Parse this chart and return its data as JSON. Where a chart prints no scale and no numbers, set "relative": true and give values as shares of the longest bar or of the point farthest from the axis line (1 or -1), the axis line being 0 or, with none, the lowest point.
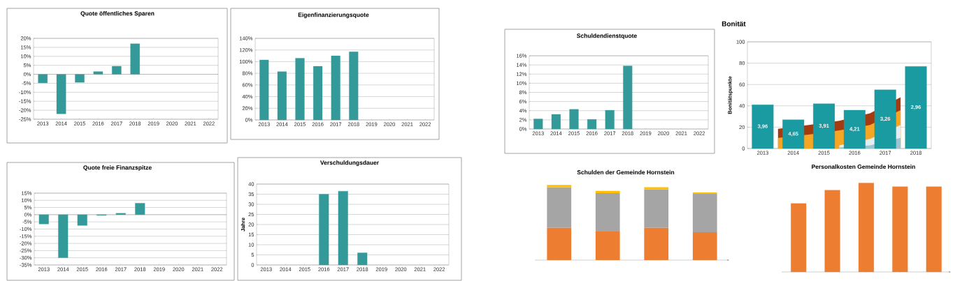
{
  "chart_data": [
    {
      "type": "bar",
      "title": "Quote öffentliches Sparen",
      "categories": [
        "2013",
        "2014",
        "2015",
        "2016",
        "2017",
        "2018",
        "2019",
        "2020",
        "2021",
        "2022"
      ],
      "values": [
        -4.8,
        -22,
        -4.5,
        1.5,
        4.5,
        17,
        null,
        null,
        null,
        null
      ],
      "color": "#339999",
      "ylim": [
        -25,
        20
      ],
      "yticks": [
        {
          "value": -25,
          "label": "-25%"
        },
        {
          "value": -20,
          "label": "-20%"
        },
        {
          "value": -15,
          "label": "-15%"
        },
        {
          "value": -10,
          "label": "-10%"
        },
        {
          "value": -5,
          "label": "-5%"
        },
        {
          "value": 0,
          "label": "0%"
        },
        {
          "value": 5,
          "label": "5%"
        },
        {
          "value": 10,
          "label": "10%"
        },
        {
          "value": 15,
          "label": "15%"
        },
        {
          "value": 20,
          "label": "20%"
        }
      ],
      "grid": "y"
    },
    {
      "type": "bar",
      "title": "Eigenfinanzierungsquote",
      "categories": [
        "2013",
        "2014",
        "2015",
        "2016",
        "2017",
        "2018",
        "2019",
        "2020",
        "2021",
        "2022"
      ],
      "values": [
        103,
        83,
        106,
        92,
        110,
        117,
        null,
        null,
        null,
        null
      ],
      "color": "#339999",
      "ylim": [
        0,
        140
      ],
      "yticks": [
        {
          "value": 0,
          "label": "0%"
        },
        {
          "value": 20,
          "label": "20%"
        },
        {
          "value": 40,
          "label": "40%"
        },
        {
          "value": 60,
          "label": "60%"
        },
        {
          "value": 80,
          "label": "80%"
        },
        {
          "value": 100,
          "label": "100%"
        },
        {
          "value": 120,
          "label": "120%"
        },
        {
          "value": 140,
          "label": "140%"
        }
      ],
      "grid": "y"
    },
    {
      "type": "bar",
      "title": "Quote freie Finanzspitze",
      "categories": [
        "2013",
        "2014",
        "2015",
        "2016",
        "2017",
        "2018",
        "2019",
        "2020",
        "2021",
        "2022"
      ],
      "values": [
        -6.5,
        -30,
        -7.5,
        -0.5,
        1,
        8,
        null,
        null,
        null,
        null
      ],
      "color": "#339999",
      "ylim": [
        -35,
        15
      ],
      "yticks": [
        {
          "value": -35,
          "label": "-35%"
        },
        {
          "value": -30,
          "label": "-30%"
        },
        {
          "value": -25,
          "label": "-25%"
        },
        {
          "value": -20,
          "label": "-20%"
        },
        {
          "value": -15,
          "label": "-15%"
        },
        {
          "value": -10,
          "label": "-10%"
        },
        {
          "value": -5,
          "label": "-5%"
        },
        {
          "value": 0,
          "label": "0%"
        },
        {
          "value": 5,
          "label": "5%"
        },
        {
          "value": 10,
          "label": "10%"
        },
        {
          "value": 15,
          "label": "15%"
        }
      ],
      "grid": "y"
    },
    {
      "type": "bar",
      "title": "Verschuldungsdauer",
      "ylabel": "Jahre",
      "categories": [
        "2013",
        "2014",
        "2015",
        "2016",
        "2017",
        "2018",
        "2019",
        "2020",
        "2021",
        "2022"
      ],
      "values": [
        null,
        null,
        null,
        35,
        36.5,
        6,
        null,
        null,
        null,
        null
      ],
      "color": "#339999",
      "ylim": [
        0,
        40
      ],
      "yticks": [
        0,
        5,
        10,
        15,
        20,
        25,
        30,
        35,
        40
      ],
      "grid": "y"
    },
    {
      "type": "bar",
      "title": "Schuldendienstquote",
      "categories": [
        "2013",
        "2014",
        "2015",
        "2016",
        "2017",
        "2018",
        "2019",
        "2020",
        "2021",
        "2022"
      ],
      "values": [
        2.2,
        3.2,
        4.3,
        2.1,
        4.1,
        13.8,
        null,
        null,
        null,
        null
      ],
      "color": "#339999",
      "ylim": [
        0,
        16
      ],
      "yticks": [
        {
          "value": 0,
          "label": "0%"
        },
        {
          "value": 2,
          "label": "2%"
        },
        {
          "value": 4,
          "label": "4%"
        },
        {
          "value": 6,
          "label": "6%"
        },
        {
          "value": 8,
          "label": "8%"
        },
        {
          "value": 10,
          "label": "10%"
        },
        {
          "value": 12,
          "label": "12%"
        },
        {
          "value": 14,
          "label": "14%"
        },
        {
          "value": 16,
          "label": "16%"
        }
      ],
      "grid": "y"
    },
    {
      "type": "bar",
      "title": "Bonität",
      "ylabel": "Bonitätspunkte",
      "x": [
        2013,
        2014,
        2015,
        2016,
        2017,
        2018
      ],
      "xlim": [
        2012.5,
        2018.5
      ],
      "xticks": [
        2013,
        2014,
        2015,
        2016,
        2017,
        2018
      ],
      "ylim": [
        0,
        100
      ],
      "yticks": [
        0,
        20,
        40,
        60,
        80,
        100
      ],
      "grid": "y",
      "series": [
        {
          "type": "area",
          "color": "#a33a10",
          "x": [
            2013.5,
            2014.5,
            2015.5,
            2016.5,
            2017.5
          ],
          "values": [
            18.5,
            22,
            26,
            33,
            48
          ]
        },
        {
          "type": "area",
          "color": "#f5a623",
          "x": [
            2013.5,
            2014.5,
            2015.5,
            2016.5,
            2017.5
          ],
          "values": [
            10,
            13,
            17,
            22,
            36
          ]
        },
        {
          "type": "area",
          "color": "#e3eef2",
          "x": [
            2015.5,
            2016.5,
            2017.5
          ],
          "values": [
            3,
            9,
            22
          ]
        },
        {
          "type": "area",
          "color": "#9cc5d2",
          "x": [
            2015.5,
            2016.5,
            2017.5
          ],
          "values": [
            1,
            3,
            10
          ]
        },
        {
          "type": "bar",
          "color": "#1a9ba1",
          "values": [
            41,
            27,
            42,
            36,
            55,
            77
          ]
        }
      ],
      "annotations": [
        "3,96",
        "4,65",
        "3,91",
        "4,21",
        "3,26",
        "2,96"
      ]
    },
    {
      "type": "bar",
      "title": "Schulden der Gemeinde Hornstein",
      "relative": true,
      "stacked": true,
      "categories": [
        null,
        null,
        null,
        null
      ],
      "series": [
        {
          "color": "#ed7d31",
          "values": [
            0.43,
            0.38,
            0.43,
            0.37
          ]
        },
        {
          "color": "#a5a5a5",
          "values": [
            0.54,
            0.51,
            0.51,
            0.51
          ]
        },
        {
          "color": "#ffc000",
          "values": [
            0.03,
            0.03,
            0.03,
            0.02
          ]
        }
      ]
    },
    {
      "type": "bar",
      "title": "Personalkosten Gemeinde Hornstein",
      "relative": true,
      "categories": [
        null,
        null,
        null,
        null,
        null
      ],
      "values": [
        0.77,
        0.92,
        1,
        0.96,
        0.96
      ],
      "color": "#ed7d31"
    }
  ]
}
